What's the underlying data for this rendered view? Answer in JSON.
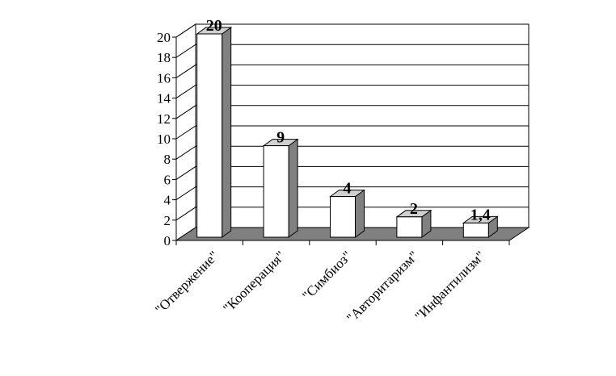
{
  "chart_data": {
    "type": "bar",
    "categories": [
      "\"Отвержение\"",
      "\"Кооперация\"",
      "\"Симбиоз\"",
      "\"Авторитаризм\"",
      "\"Инфантилизм\""
    ],
    "values": [
      20,
      9,
      4,
      2,
      1.4
    ],
    "data_labels": [
      "20",
      "9",
      "4",
      "2",
      "1,4"
    ],
    "ylim": [
      0,
      20
    ],
    "yticks": [
      "0",
      "2",
      "4",
      "6",
      "8",
      "10",
      "12",
      "14",
      "16",
      "18",
      "20"
    ],
    "title": "",
    "xlabel": "",
    "ylabel": "",
    "grid": true,
    "legend": "none",
    "style": "3d",
    "colors": {
      "bar_front": "#ffffff",
      "bar_top": "#d0d0d0",
      "bar_side": "#808080",
      "floor": "#808080",
      "grid": "#000000"
    }
  }
}
